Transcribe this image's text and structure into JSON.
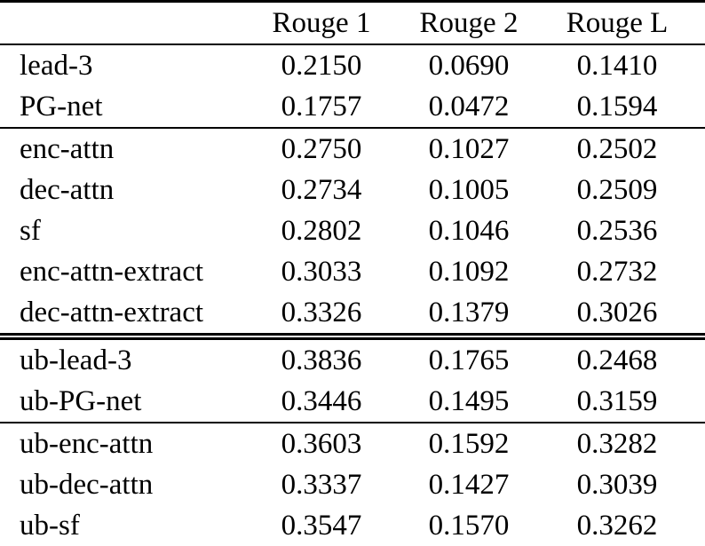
{
  "table": {
    "columns": [
      "Rouge 1",
      "Rouge 2",
      "Rouge L"
    ],
    "corner_label": "",
    "text_color": "#000000",
    "background_color": "#ffffff",
    "rule_color": "#000000",
    "sections": [
      {
        "rows": [
          {
            "label": "lead-3",
            "values": [
              "0.2150",
              "0.0690",
              "0.1410"
            ]
          },
          {
            "label": "PG-net",
            "values": [
              "0.1757",
              "0.0472",
              "0.1594"
            ]
          }
        ]
      },
      {
        "rows": [
          {
            "label": "enc-attn",
            "values": [
              "0.2750",
              "0.1027",
              "0.2502"
            ]
          },
          {
            "label": "dec-attn",
            "values": [
              "0.2734",
              "0.1005",
              "0.2509"
            ]
          },
          {
            "label": "sf",
            "values": [
              "0.2802",
              "0.1046",
              "0.2536"
            ]
          },
          {
            "label": "enc-attn-extract",
            "values": [
              "0.3033",
              "0.1092",
              "0.2732"
            ]
          },
          {
            "label": "dec-attn-extract",
            "values": [
              "0.3326",
              "0.1379",
              "0.3026"
            ]
          }
        ]
      },
      {
        "rows": [
          {
            "label": "ub-lead-3",
            "values": [
              "0.3836",
              "0.1765",
              "0.2468"
            ]
          },
          {
            "label": "ub-PG-net",
            "values": [
              "0.3446",
              "0.1495",
              "0.3159"
            ]
          }
        ]
      },
      {
        "rows": [
          {
            "label": "ub-enc-attn",
            "values": [
              "0.3603",
              "0.1592",
              "0.3282"
            ]
          },
          {
            "label": "ub-dec-attn",
            "values": [
              "0.3337",
              "0.1427",
              "0.3039"
            ]
          },
          {
            "label": "ub-sf",
            "values": [
              "0.3547",
              "0.1570",
              "0.3262"
            ]
          }
        ]
      }
    ]
  }
}
